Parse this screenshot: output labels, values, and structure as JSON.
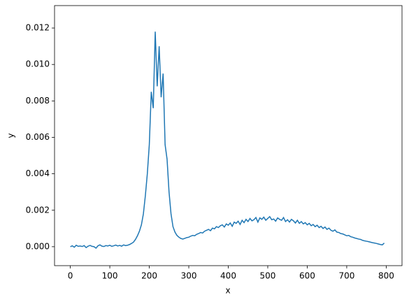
{
  "chart_data": {
    "type": "line",
    "xlabel": "x",
    "ylabel": "y",
    "x": [
      0,
      5,
      10,
      15,
      20,
      25,
      30,
      35,
      40,
      45,
      50,
      55,
      60,
      65,
      70,
      75,
      80,
      85,
      90,
      95,
      100,
      105,
      110,
      115,
      120,
      125,
      130,
      135,
      140,
      145,
      150,
      155,
      160,
      165,
      170,
      175,
      180,
      185,
      190,
      195,
      200,
      205,
      210,
      215,
      220,
      225,
      230,
      235,
      240,
      245,
      250,
      255,
      260,
      265,
      270,
      275,
      280,
      285,
      290,
      295,
      300,
      305,
      310,
      315,
      320,
      325,
      330,
      335,
      340,
      345,
      350,
      355,
      360,
      365,
      370,
      375,
      380,
      385,
      390,
      395,
      400,
      405,
      410,
      415,
      420,
      425,
      430,
      435,
      440,
      445,
      450,
      455,
      460,
      465,
      470,
      475,
      480,
      485,
      490,
      495,
      500,
      505,
      510,
      515,
      520,
      525,
      530,
      535,
      540,
      545,
      550,
      555,
      560,
      565,
      570,
      575,
      580,
      585,
      590,
      595,
      600,
      605,
      610,
      615,
      620,
      625,
      630,
      635,
      640,
      645,
      650,
      655,
      660,
      665,
      670,
      675,
      680,
      685,
      690,
      695,
      700,
      705,
      710,
      715,
      720,
      725,
      730,
      735,
      740,
      745,
      750,
      755,
      760,
      765,
      770,
      775,
      780,
      785,
      790,
      795
    ],
    "series": [
      {
        "color": "#1f77b4",
        "values": [
          0.0,
          5e-05,
          -3e-05,
          8e-05,
          2e-05,
          4e-05,
          1e-05,
          6e-05,
          -5e-05,
          3e-05,
          7e-05,
          2e-05,
          0.0,
          -8e-05,
          5e-05,
          0.0001,
          3e-05,
          1e-05,
          6e-05,
          4e-05,
          8e-05,
          2e-05,
          5e-05,
          9e-05,
          4e-05,
          7e-05,
          3e-05,
          0.0001,
          6e-05,
          8e-05,
          0.00012,
          0.00018,
          0.00025,
          0.0004,
          0.0006,
          0.00085,
          0.0012,
          0.0018,
          0.0028,
          0.004,
          0.0056,
          0.0085,
          0.0076,
          0.0118,
          0.0088,
          0.011,
          0.0082,
          0.0095,
          0.0056,
          0.0048,
          0.003,
          0.0018,
          0.0011,
          0.0008,
          0.00062,
          0.00052,
          0.00045,
          0.00042,
          0.00046,
          0.0005,
          0.00052,
          0.00058,
          0.00062,
          0.0006,
          0.00068,
          0.00072,
          0.00078,
          0.00075,
          0.00085,
          0.0009,
          0.00095,
          0.00088,
          0.00102,
          0.00098,
          0.0011,
          0.00105,
          0.00115,
          0.0012,
          0.00108,
          0.00125,
          0.00118,
          0.0013,
          0.00112,
          0.00135,
          0.00128,
          0.0014,
          0.00122,
          0.00145,
          0.00132,
          0.0015,
          0.00138,
          0.00155,
          0.00142,
          0.00148,
          0.0016,
          0.00135,
          0.00158,
          0.0015,
          0.00162,
          0.00145,
          0.00155,
          0.00165,
          0.00148,
          0.00152,
          0.0014,
          0.00158,
          0.0015,
          0.00145,
          0.0016,
          0.00138,
          0.00148,
          0.00135,
          0.0015,
          0.00142,
          0.0013,
          0.00145,
          0.00128,
          0.00138,
          0.00125,
          0.00132,
          0.0012,
          0.00128,
          0.00115,
          0.00122,
          0.0011,
          0.00118,
          0.00105,
          0.00112,
          0.001,
          0.00108,
          0.00095,
          0.00102,
          0.0009,
          0.00085,
          0.00092,
          0.0008,
          0.00078,
          0.00072,
          0.0007,
          0.00065,
          0.0006,
          0.00062,
          0.00055,
          0.00052,
          0.00048,
          0.00045,
          0.00042,
          0.0004,
          0.00035,
          0.00032,
          0.0003,
          0.00028,
          0.00025,
          0.00022,
          0.0002,
          0.00018,
          0.00015,
          0.00012,
          0.0001,
          0.0002
        ]
      }
    ],
    "xlim": [
      -40,
      840
    ],
    "ylim": [
      -0.00104,
      0.01323
    ],
    "xticks": [
      0,
      100,
      200,
      300,
      400,
      500,
      600,
      700,
      800
    ],
    "yticks": [
      {
        "value": 0,
        "label": "0.000"
      },
      {
        "value": 0.002,
        "label": "0.002"
      },
      {
        "value": 0.004,
        "label": "0.004"
      },
      {
        "value": 0.006,
        "label": "0.006"
      },
      {
        "value": 0.008,
        "label": "0.008"
      },
      {
        "value": 0.01,
        "label": "0.010"
      },
      {
        "value": 0.012,
        "label": "0.012"
      }
    ]
  }
}
